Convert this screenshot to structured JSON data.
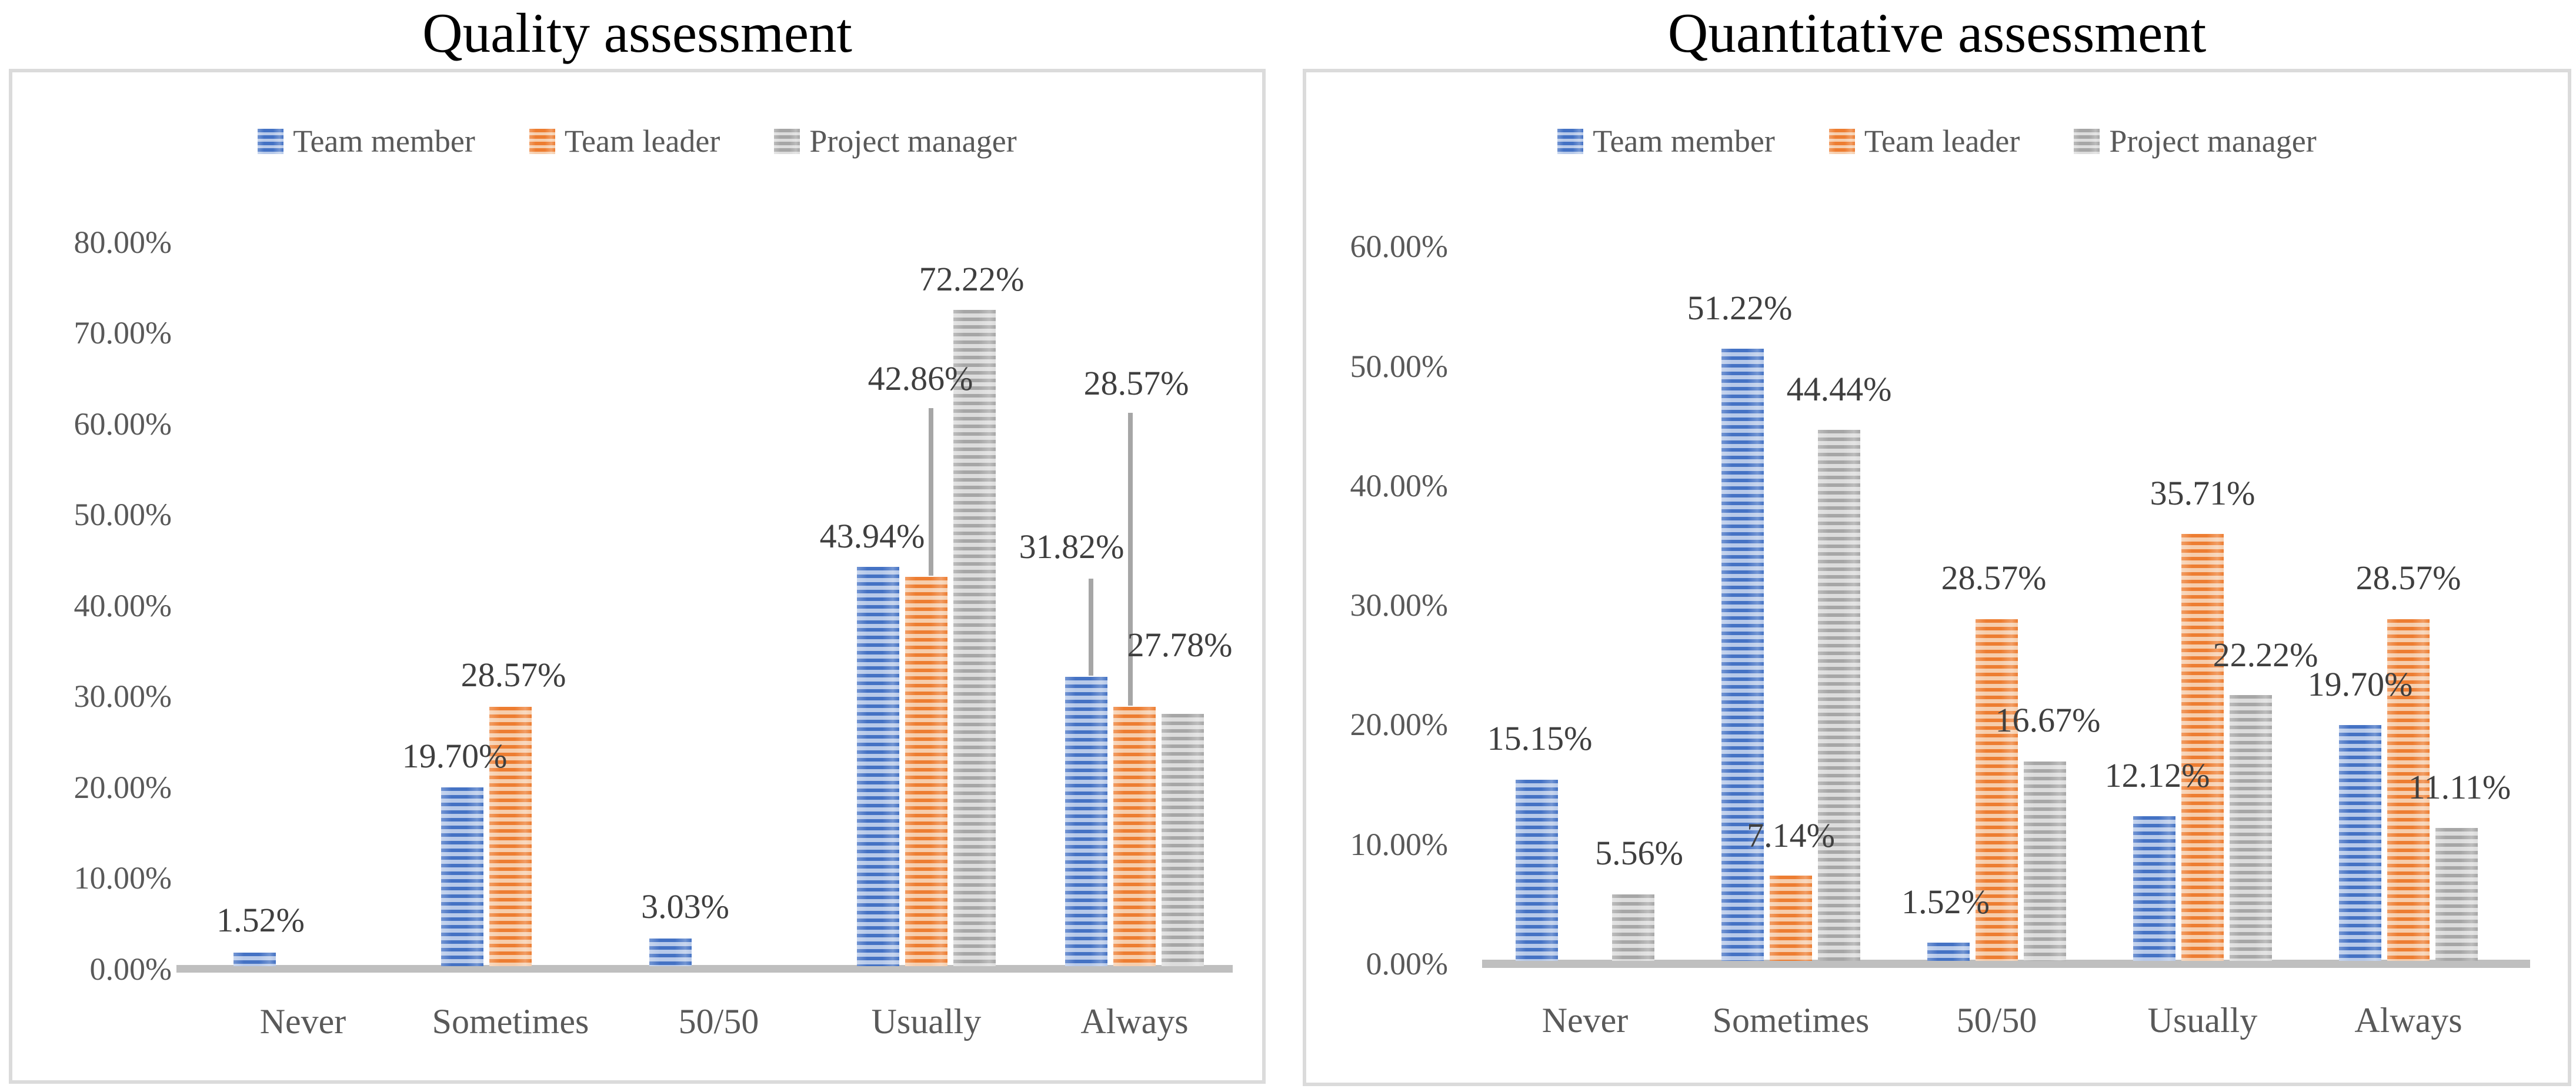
{
  "chart_data": [
    {
      "type": "bar",
      "title": "Quality assessment",
      "slug": "quality",
      "categories": [
        "Never",
        "Sometimes",
        "50/50",
        "Usually",
        "Always"
      ],
      "series": [
        {
          "name": "Team member",
          "color": "#4472C4",
          "pattern_light": "#B7C9E9",
          "values": [
            1.52,
            19.7,
            3.03,
            43.94,
            31.82
          ]
        },
        {
          "name": "Team leader",
          "color": "#ED7D31",
          "pattern_light": "#F6CDAC",
          "values": [
            0,
            28.57,
            0,
            42.86,
            28.57
          ]
        },
        {
          "name": "Project manager",
          "color": "#A6A6A6",
          "pattern_light": "#DCDCDC",
          "values": [
            0,
            0,
            0,
            72.22,
            27.78
          ]
        }
      ],
      "ylim": [
        0,
        80
      ],
      "tick_step": 10,
      "y_tick_labels": [
        "0.00%",
        "10.00%",
        "20.00%",
        "30.00%",
        "40.00%",
        "50.00%",
        "60.00%",
        "70.00%",
        "80.00%"
      ],
      "legend_position": "top",
      "grid": false,
      "value_labels": [
        {
          "text": "1.52%",
          "cat": 0,
          "series": 0,
          "dx": 10,
          "label_pct": 4.9,
          "callout": null
        },
        {
          "text": "19.70%",
          "cat": 1,
          "series": 0,
          "dx": -13,
          "label_pct": 23.0,
          "callout": null
        },
        {
          "text": "28.57%",
          "cat": 1,
          "series": 1,
          "dx": 5,
          "label_pct": 31.9,
          "callout": null
        },
        {
          "text": "3.03%",
          "cat": 2,
          "series": 0,
          "dx": 25,
          "label_pct": 6.4,
          "callout": null
        },
        {
          "text": "43.94%",
          "cat": 3,
          "series": 0,
          "dx": -10,
          "label_pct": 47.2,
          "callout": null
        },
        {
          "text": "42.86%",
          "cat": 3,
          "series": 1,
          "dx": -10,
          "label_pct": 64.5,
          "callout": {
            "from_pct": 61.3,
            "line_dx": 8
          }
        },
        {
          "text": "72.22%",
          "cat": 3,
          "series": 2,
          "dx": -5,
          "label_pct": 75.5,
          "callout": null
        },
        {
          "text": "31.82%",
          "cat": 4,
          "series": 0,
          "dx": -25,
          "label_pct": 46.0,
          "callout": {
            "from_pct": 42.5,
            "line_dx": 8
          }
        },
        {
          "text": "28.57%",
          "cat": 4,
          "series": 1,
          "dx": 3,
          "label_pct": 64.0,
          "callout": {
            "from_pct": 60.8,
            "line_dx": -7
          }
        },
        {
          "text": "27.78%",
          "cat": 4,
          "series": 2,
          "dx": -5,
          "label_pct": 35.2,
          "callout": null
        }
      ]
    },
    {
      "type": "bar",
      "title": "Quantitative assessment",
      "slug": "quantitative",
      "categories": [
        "Never",
        "Sometimes",
        "50/50",
        "Usually",
        "Always"
      ],
      "series": [
        {
          "name": "Team member",
          "color": "#4472C4",
          "pattern_light": "#B7C9E9",
          "values": [
            15.15,
            51.22,
            1.52,
            12.12,
            19.7
          ]
        },
        {
          "name": "Team leader",
          "color": "#ED7D31",
          "pattern_light": "#F6CDAC",
          "values": [
            0,
            7.14,
            28.57,
            35.71,
            28.57
          ]
        },
        {
          "name": "Project manager",
          "color": "#A6A6A6",
          "pattern_light": "#DCDCDC",
          "values": [
            5.56,
            44.44,
            16.67,
            22.22,
            11.11
          ]
        }
      ],
      "ylim": [
        0,
        60
      ],
      "tick_step": 10,
      "y_tick_labels": [
        "0.00%",
        "10.00%",
        "20.00%",
        "30.00%",
        "40.00%",
        "50.00%",
        "60.00%"
      ],
      "legend_position": "top",
      "grid": false,
      "value_labels": [
        {
          "text": "15.15%",
          "cat": 0,
          "series": 0,
          "dx": 5,
          "label_pct": 18.5,
          "callout": null
        },
        {
          "text": "5.56%",
          "cat": 0,
          "series": 2,
          "dx": 10,
          "label_pct": 8.9,
          "callout": null
        },
        {
          "text": "51.22%",
          "cat": 1,
          "series": 0,
          "dx": -5,
          "label_pct": 54.5,
          "callout": null
        },
        {
          "text": "7.14%",
          "cat": 1,
          "series": 1,
          "dx": 0,
          "label_pct": 10.4,
          "callout": null
        },
        {
          "text": "44.44%",
          "cat": 1,
          "series": 2,
          "dx": 0,
          "label_pct": 47.7,
          "callout": null
        },
        {
          "text": "1.52%",
          "cat": 2,
          "series": 0,
          "dx": -5,
          "label_pct": 4.8,
          "callout": null
        },
        {
          "text": "28.57%",
          "cat": 2,
          "series": 1,
          "dx": -5,
          "label_pct": 31.9,
          "callout": null
        },
        {
          "text": "16.67%",
          "cat": 2,
          "series": 2,
          "dx": 5,
          "label_pct": 20.0,
          "callout": null
        },
        {
          "text": "12.12%",
          "cat": 3,
          "series": 0,
          "dx": 5,
          "label_pct": 15.4,
          "callout": null
        },
        {
          "text": "35.71%",
          "cat": 3,
          "series": 1,
          "dx": 0,
          "label_pct": 39.0,
          "callout": null
        },
        {
          "text": "22.22%",
          "cat": 3,
          "series": 2,
          "dx": 25,
          "label_pct": 25.5,
          "callout": null
        },
        {
          "text": "19.70%",
          "cat": 4,
          "series": 0,
          "dx": 0,
          "label_pct": 23.0,
          "callout": null
        },
        {
          "text": "28.57%",
          "cat": 4,
          "series": 1,
          "dx": 0,
          "label_pct": 31.9,
          "callout": null
        },
        {
          "text": "11.11%",
          "cat": 4,
          "series": 2,
          "dx": 5,
          "label_pct": 14.4,
          "callout": null
        }
      ]
    }
  ]
}
